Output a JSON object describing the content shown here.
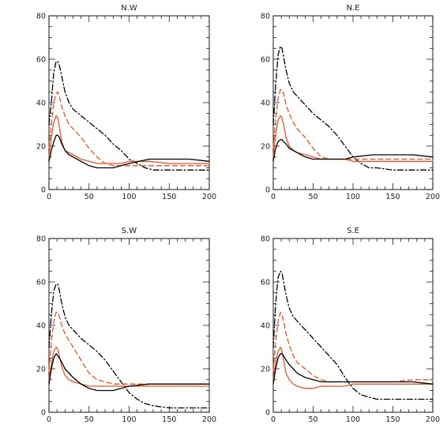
{
  "chart_data": [
    {
      "type": "line",
      "title": "N.W",
      "xlim": [
        0,
        200
      ],
      "ylim": [
        0,
        80
      ],
      "xticks": [
        0,
        50,
        100,
        150,
        200
      ],
      "yticks": [
        0,
        20,
        40,
        60,
        80
      ],
      "series": [
        {
          "color": "#000000",
          "style": "dashdot",
          "x": [
            0,
            3,
            6,
            9,
            11,
            13,
            16,
            20,
            25,
            30,
            40,
            50,
            60,
            70,
            80,
            90,
            100,
            110,
            120,
            130,
            150,
            175,
            200
          ],
          "y": [
            30,
            40,
            54,
            59,
            59,
            57,
            52,
            45,
            40,
            37,
            34,
            31,
            28,
            25,
            21,
            18,
            14,
            12,
            10,
            9,
            9,
            9,
            9
          ]
        },
        {
          "color": "#e8542a",
          "style": "dashed",
          "x": [
            0,
            3,
            6,
            9,
            11,
            13,
            16,
            20,
            25,
            30,
            40,
            50,
            60,
            70,
            80,
            100,
            125,
            150,
            175,
            200
          ],
          "y": [
            19,
            30,
            40,
            44,
            45,
            43,
            38,
            34,
            30,
            28,
            24,
            19,
            15,
            12,
            11,
            11,
            11,
            11,
            11,
            11
          ]
        },
        {
          "color": "#e8542a",
          "style": "solid",
          "x": [
            0,
            3,
            6,
            9,
            11,
            13,
            16,
            20,
            25,
            30,
            40,
            50,
            60,
            70,
            80,
            90,
            100,
            125,
            150,
            175,
            200
          ],
          "y": [
            15,
            24,
            31,
            34,
            33,
            29,
            22,
            18,
            17,
            16,
            14,
            13,
            12,
            12,
            12,
            12,
            13,
            13,
            12,
            12,
            12
          ]
        },
        {
          "color": "#000000",
          "style": "solid",
          "x": [
            0,
            3,
            6,
            9,
            11,
            13,
            16,
            20,
            25,
            30,
            40,
            50,
            60,
            70,
            80,
            90,
            100,
            125,
            150,
            175,
            200
          ],
          "y": [
            13,
            18,
            22,
            25,
            25,
            24,
            21,
            18,
            16,
            15,
            13,
            11,
            10,
            10,
            10,
            11,
            12,
            14,
            14,
            14,
            13
          ]
        }
      ]
    },
    {
      "type": "line",
      "title": "N.E",
      "xlim": [
        0,
        200
      ],
      "ylim": [
        0,
        80
      ],
      "xticks": [
        0,
        50,
        100,
        150,
        200
      ],
      "yticks": [
        0,
        20,
        40,
        60,
        80
      ],
      "series": [
        {
          "color": "#000000",
          "style": "dashdot",
          "x": [
            0,
            3,
            6,
            9,
            11,
            13,
            16,
            20,
            25,
            30,
            40,
            50,
            60,
            70,
            80,
            90,
            100,
            110,
            120,
            130,
            150,
            175,
            200
          ],
          "y": [
            30,
            48,
            62,
            66,
            65,
            61,
            55,
            49,
            45,
            43,
            39,
            35,
            32,
            29,
            25,
            20,
            15,
            12,
            10,
            10,
            9,
            9,
            9
          ]
        },
        {
          "color": "#e8542a",
          "style": "dashed",
          "x": [
            0,
            3,
            6,
            9,
            11,
            13,
            16,
            20,
            25,
            30,
            40,
            50,
            60,
            70,
            80,
            100,
            125,
            150,
            175,
            200
          ],
          "y": [
            19,
            32,
            42,
            46,
            46,
            44,
            39,
            35,
            31,
            28,
            24,
            19,
            15,
            14,
            14,
            14,
            14,
            14,
            14,
            14
          ]
        },
        {
          "color": "#e8542a",
          "style": "solid",
          "x": [
            0,
            3,
            6,
            9,
            11,
            13,
            16,
            20,
            25,
            30,
            40,
            50,
            60,
            70,
            80,
            90,
            100,
            125,
            150,
            175,
            200
          ],
          "y": [
            15,
            25,
            32,
            34,
            33,
            30,
            24,
            20,
            18,
            17,
            16,
            15,
            14,
            14,
            14,
            14,
            13,
            13,
            13,
            13,
            13
          ]
        },
        {
          "color": "#000000",
          "style": "solid",
          "x": [
            0,
            3,
            6,
            9,
            11,
            13,
            16,
            20,
            25,
            30,
            40,
            50,
            60,
            70,
            80,
            90,
            100,
            125,
            150,
            175,
            200
          ],
          "y": [
            13,
            19,
            22,
            23,
            23,
            22,
            21,
            19,
            18,
            17,
            15,
            14,
            14,
            14,
            14,
            14,
            15,
            16,
            16,
            16,
            15
          ]
        }
      ]
    },
    {
      "type": "line",
      "title": "S.W",
      "xlim": [
        0,
        200
      ],
      "ylim": [
        0,
        80
      ],
      "xticks": [
        0,
        50,
        100,
        150,
        200
      ],
      "yticks": [
        0,
        20,
        40,
        60,
        80
      ],
      "series": [
        {
          "color": "#000000",
          "style": "dashdot",
          "x": [
            0,
            3,
            6,
            9,
            11,
            13,
            16,
            20,
            25,
            30,
            40,
            50,
            60,
            70,
            80,
            90,
            100,
            110,
            120,
            130,
            150,
            175,
            200
          ],
          "y": [
            30,
            45,
            56,
            59,
            59,
            56,
            50,
            44,
            40,
            38,
            34,
            31,
            28,
            24,
            19,
            14,
            9,
            6,
            4,
            3,
            2,
            2,
            2
          ]
        },
        {
          "color": "#e8542a",
          "style": "dashed",
          "x": [
            0,
            3,
            6,
            9,
            11,
            13,
            16,
            20,
            25,
            30,
            40,
            50,
            60,
            70,
            80,
            100,
            125,
            150,
            175,
            200
          ],
          "y": [
            19,
            32,
            42,
            46,
            46,
            44,
            40,
            36,
            33,
            30,
            24,
            18,
            15,
            14,
            13,
            13,
            13,
            13,
            13,
            13
          ]
        },
        {
          "color": "#e8542a",
          "style": "solid",
          "x": [
            0,
            3,
            6,
            9,
            11,
            13,
            16,
            20,
            25,
            30,
            40,
            50,
            60,
            70,
            80,
            90,
            100,
            125,
            150,
            175,
            200
          ],
          "y": [
            15,
            22,
            28,
            30,
            29,
            26,
            21,
            17,
            15,
            14,
            13,
            12,
            12,
            12,
            12,
            12,
            12,
            12,
            12,
            12,
            12
          ]
        },
        {
          "color": "#000000",
          "style": "solid",
          "x": [
            0,
            3,
            6,
            9,
            11,
            13,
            16,
            20,
            25,
            30,
            40,
            50,
            60,
            70,
            80,
            90,
            100,
            125,
            150,
            175,
            200
          ],
          "y": [
            13,
            20,
            25,
            27,
            26,
            25,
            23,
            20,
            18,
            16,
            13,
            11,
            10,
            10,
            10,
            11,
            12,
            13,
            13,
            13,
            13
          ]
        }
      ]
    },
    {
      "type": "line",
      "title": "S.E",
      "xlim": [
        0,
        200
      ],
      "ylim": [
        0,
        80
      ],
      "xticks": [
        0,
        50,
        100,
        150,
        200
      ],
      "yticks": [
        0,
        20,
        40,
        60,
        80
      ],
      "series": [
        {
          "color": "#000000",
          "style": "dashdot",
          "x": [
            0,
            3,
            6,
            9,
            11,
            13,
            16,
            20,
            25,
            30,
            40,
            50,
            60,
            70,
            80,
            90,
            100,
            110,
            120,
            130,
            150,
            175,
            200
          ],
          "y": [
            30,
            50,
            62,
            65,
            64,
            60,
            54,
            48,
            44,
            42,
            38,
            34,
            30,
            26,
            22,
            16,
            11,
            8,
            7,
            6,
            6,
            6,
            6
          ]
        },
        {
          "color": "#e8542a",
          "style": "dashed",
          "x": [
            0,
            3,
            6,
            9,
            11,
            13,
            16,
            20,
            25,
            30,
            40,
            50,
            60,
            70,
            80,
            100,
            125,
            150,
            175,
            200
          ],
          "y": [
            19,
            32,
            42,
            46,
            45,
            42,
            36,
            31,
            26,
            23,
            20,
            17,
            15,
            14,
            14,
            14,
            14,
            14,
            15,
            15
          ]
        },
        {
          "color": "#e8542a",
          "style": "solid",
          "x": [
            0,
            3,
            6,
            9,
            11,
            13,
            16,
            20,
            25,
            30,
            40,
            50,
            60,
            70,
            80,
            90,
            100,
            125,
            150,
            175,
            200
          ],
          "y": [
            15,
            23,
            28,
            30,
            28,
            24,
            18,
            15,
            13,
            12,
            11,
            11,
            12,
            12,
            12,
            12,
            13,
            13,
            13,
            13,
            13
          ]
        },
        {
          "color": "#000000",
          "style": "solid",
          "x": [
            0,
            3,
            6,
            9,
            11,
            13,
            16,
            20,
            25,
            30,
            40,
            50,
            60,
            70,
            80,
            90,
            100,
            125,
            150,
            175,
            200
          ],
          "y": [
            13,
            20,
            25,
            27,
            27,
            26,
            24,
            22,
            20,
            18,
            16,
            15,
            14,
            14,
            14,
            14,
            14,
            14,
            14,
            14,
            13
          ]
        }
      ]
    }
  ]
}
